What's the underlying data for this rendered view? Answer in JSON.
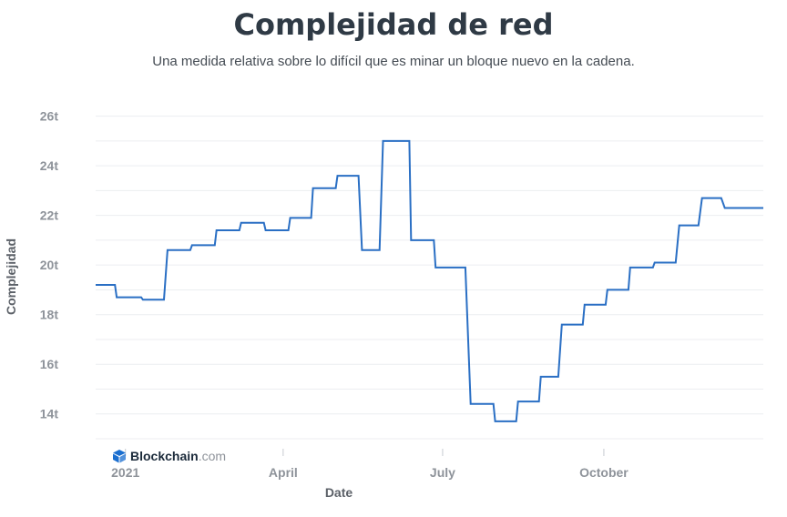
{
  "title": "Complejidad de red",
  "subtitle": "Una medida relativa sobre lo difícil que es minar un bloque nuevo en la cadena.",
  "brand": {
    "name": "Blockchain",
    "tld": ".com",
    "icon": "blockchain-cube-icon",
    "color": "#1a6ecf"
  },
  "chart_data": {
    "type": "line",
    "title": "Complejidad de red",
    "subtitle": "Una medida relativa sobre lo difícil que es minar un bloque nuevo en la cadena.",
    "xlabel": "Date",
    "ylabel": "Complejidad",
    "ylim": [
      13,
      26.5
    ],
    "xlim": [
      "2020-12-15",
      "2021-12-31"
    ],
    "y_ticks": [
      14,
      16,
      18,
      20,
      22,
      24,
      26
    ],
    "y_tick_labels": [
      "14t",
      "16t",
      "18t",
      "20t",
      "22t",
      "24t",
      "26t"
    ],
    "x_ticks": [
      "2021-01-01",
      "2021-04-01",
      "2021-07-01",
      "2021-10-01"
    ],
    "x_tick_labels": [
      "2021",
      "April",
      "July",
      "October"
    ],
    "grid": true,
    "line_color": "#2a6fc4",
    "series": [
      {
        "points": [
          [
            "2020-12-15",
            19.2
          ],
          [
            "2020-12-26",
            19.2
          ],
          [
            "2020-12-27",
            18.7
          ],
          [
            "2021-01-10",
            18.7
          ],
          [
            "2021-01-11",
            18.6
          ],
          [
            "2021-01-23",
            18.6
          ],
          [
            "2021-01-25",
            20.6
          ],
          [
            "2021-02-07",
            20.6
          ],
          [
            "2021-02-08",
            20.8
          ],
          [
            "2021-02-21",
            20.8
          ],
          [
            "2021-02-22",
            21.4
          ],
          [
            "2021-03-07",
            21.4
          ],
          [
            "2021-03-08",
            21.7
          ],
          [
            "2021-03-21",
            21.7
          ],
          [
            "2021-03-22",
            21.4
          ],
          [
            "2021-04-04",
            21.4
          ],
          [
            "2021-04-05",
            21.9
          ],
          [
            "2021-04-17",
            21.9
          ],
          [
            "2021-04-18",
            23.1
          ],
          [
            "2021-05-01",
            23.1
          ],
          [
            "2021-05-02",
            23.6
          ],
          [
            "2021-05-14",
            23.6
          ],
          [
            "2021-05-16",
            20.6
          ],
          [
            "2021-05-26",
            20.6
          ],
          [
            "2021-05-28",
            25.0
          ],
          [
            "2021-06-12",
            25.0
          ],
          [
            "2021-06-13",
            21.0
          ],
          [
            "2021-06-26",
            21.0
          ],
          [
            "2021-06-27",
            19.9
          ],
          [
            "2021-07-14",
            19.9
          ],
          [
            "2021-07-17",
            14.4
          ],
          [
            "2021-07-30",
            14.4
          ],
          [
            "2021-07-31",
            13.7
          ],
          [
            "2021-08-12",
            13.7
          ],
          [
            "2021-08-13",
            14.5
          ],
          [
            "2021-08-25",
            14.5
          ],
          [
            "2021-08-26",
            15.5
          ],
          [
            "2021-09-05",
            15.5
          ],
          [
            "2021-09-07",
            17.6
          ],
          [
            "2021-09-19",
            17.6
          ],
          [
            "2021-09-20",
            18.4
          ],
          [
            "2021-10-02",
            18.4
          ],
          [
            "2021-10-03",
            19.0
          ],
          [
            "2021-10-15",
            19.0
          ],
          [
            "2021-10-16",
            19.9
          ],
          [
            "2021-10-29",
            19.9
          ],
          [
            "2021-10-30",
            20.1
          ],
          [
            "2021-11-11",
            20.1
          ],
          [
            "2021-11-13",
            21.6
          ],
          [
            "2021-11-24",
            21.6
          ],
          [
            "2021-11-26",
            22.7
          ],
          [
            "2021-12-07",
            22.7
          ],
          [
            "2021-12-09",
            22.3
          ],
          [
            "2021-12-31",
            22.3
          ]
        ]
      }
    ]
  }
}
